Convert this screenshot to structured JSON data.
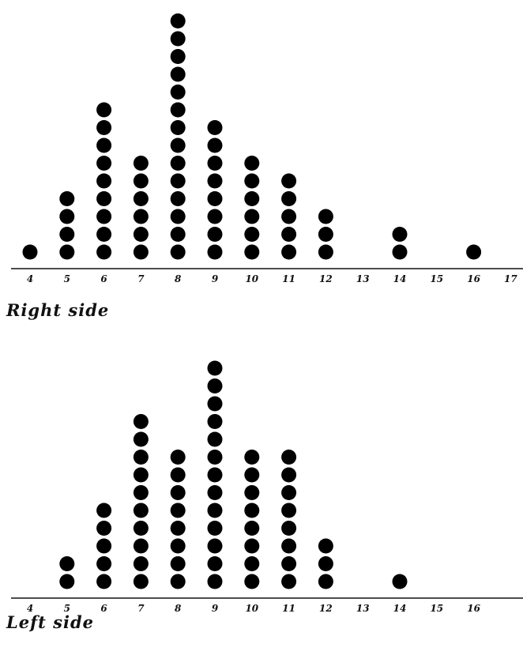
{
  "chart_data": [
    {
      "type": "scatter",
      "style": "dot-plot",
      "title": "Right side",
      "xlabel": "",
      "ylabel": "",
      "x": [
        4,
        5,
        6,
        7,
        8,
        9,
        10,
        11,
        12,
        13,
        14,
        15,
        16,
        17
      ],
      "counts": [
        1,
        4,
        9,
        6,
        14,
        8,
        6,
        5,
        3,
        0,
        2,
        0,
        1,
        0
      ],
      "tick_labels": [
        "4",
        "5",
        "6",
        "7",
        "8",
        "9",
        "10",
        "11",
        "12",
        "13",
        "14",
        "15",
        "16",
        "17"
      ],
      "xlim": [
        4,
        17
      ],
      "grid": false,
      "legend": "none",
      "marker_color": "#000000"
    },
    {
      "type": "scatter",
      "style": "dot-plot",
      "title": "Left side",
      "xlabel": "",
      "ylabel": "",
      "x": [
        4,
        5,
        6,
        7,
        8,
        9,
        10,
        11,
        12,
        13,
        14,
        15,
        16
      ],
      "counts": [
        0,
        2,
        5,
        10,
        8,
        13,
        8,
        8,
        3,
        0,
        1,
        0,
        0
      ],
      "tick_labels": [
        "4",
        "5",
        "6",
        "7",
        "8",
        "9",
        "10",
        "11",
        "12",
        "13",
        "14",
        "15",
        "16"
      ],
      "xlim": [
        4,
        16
      ],
      "grid": false,
      "legend": "none",
      "marker_color": "#000000"
    }
  ]
}
